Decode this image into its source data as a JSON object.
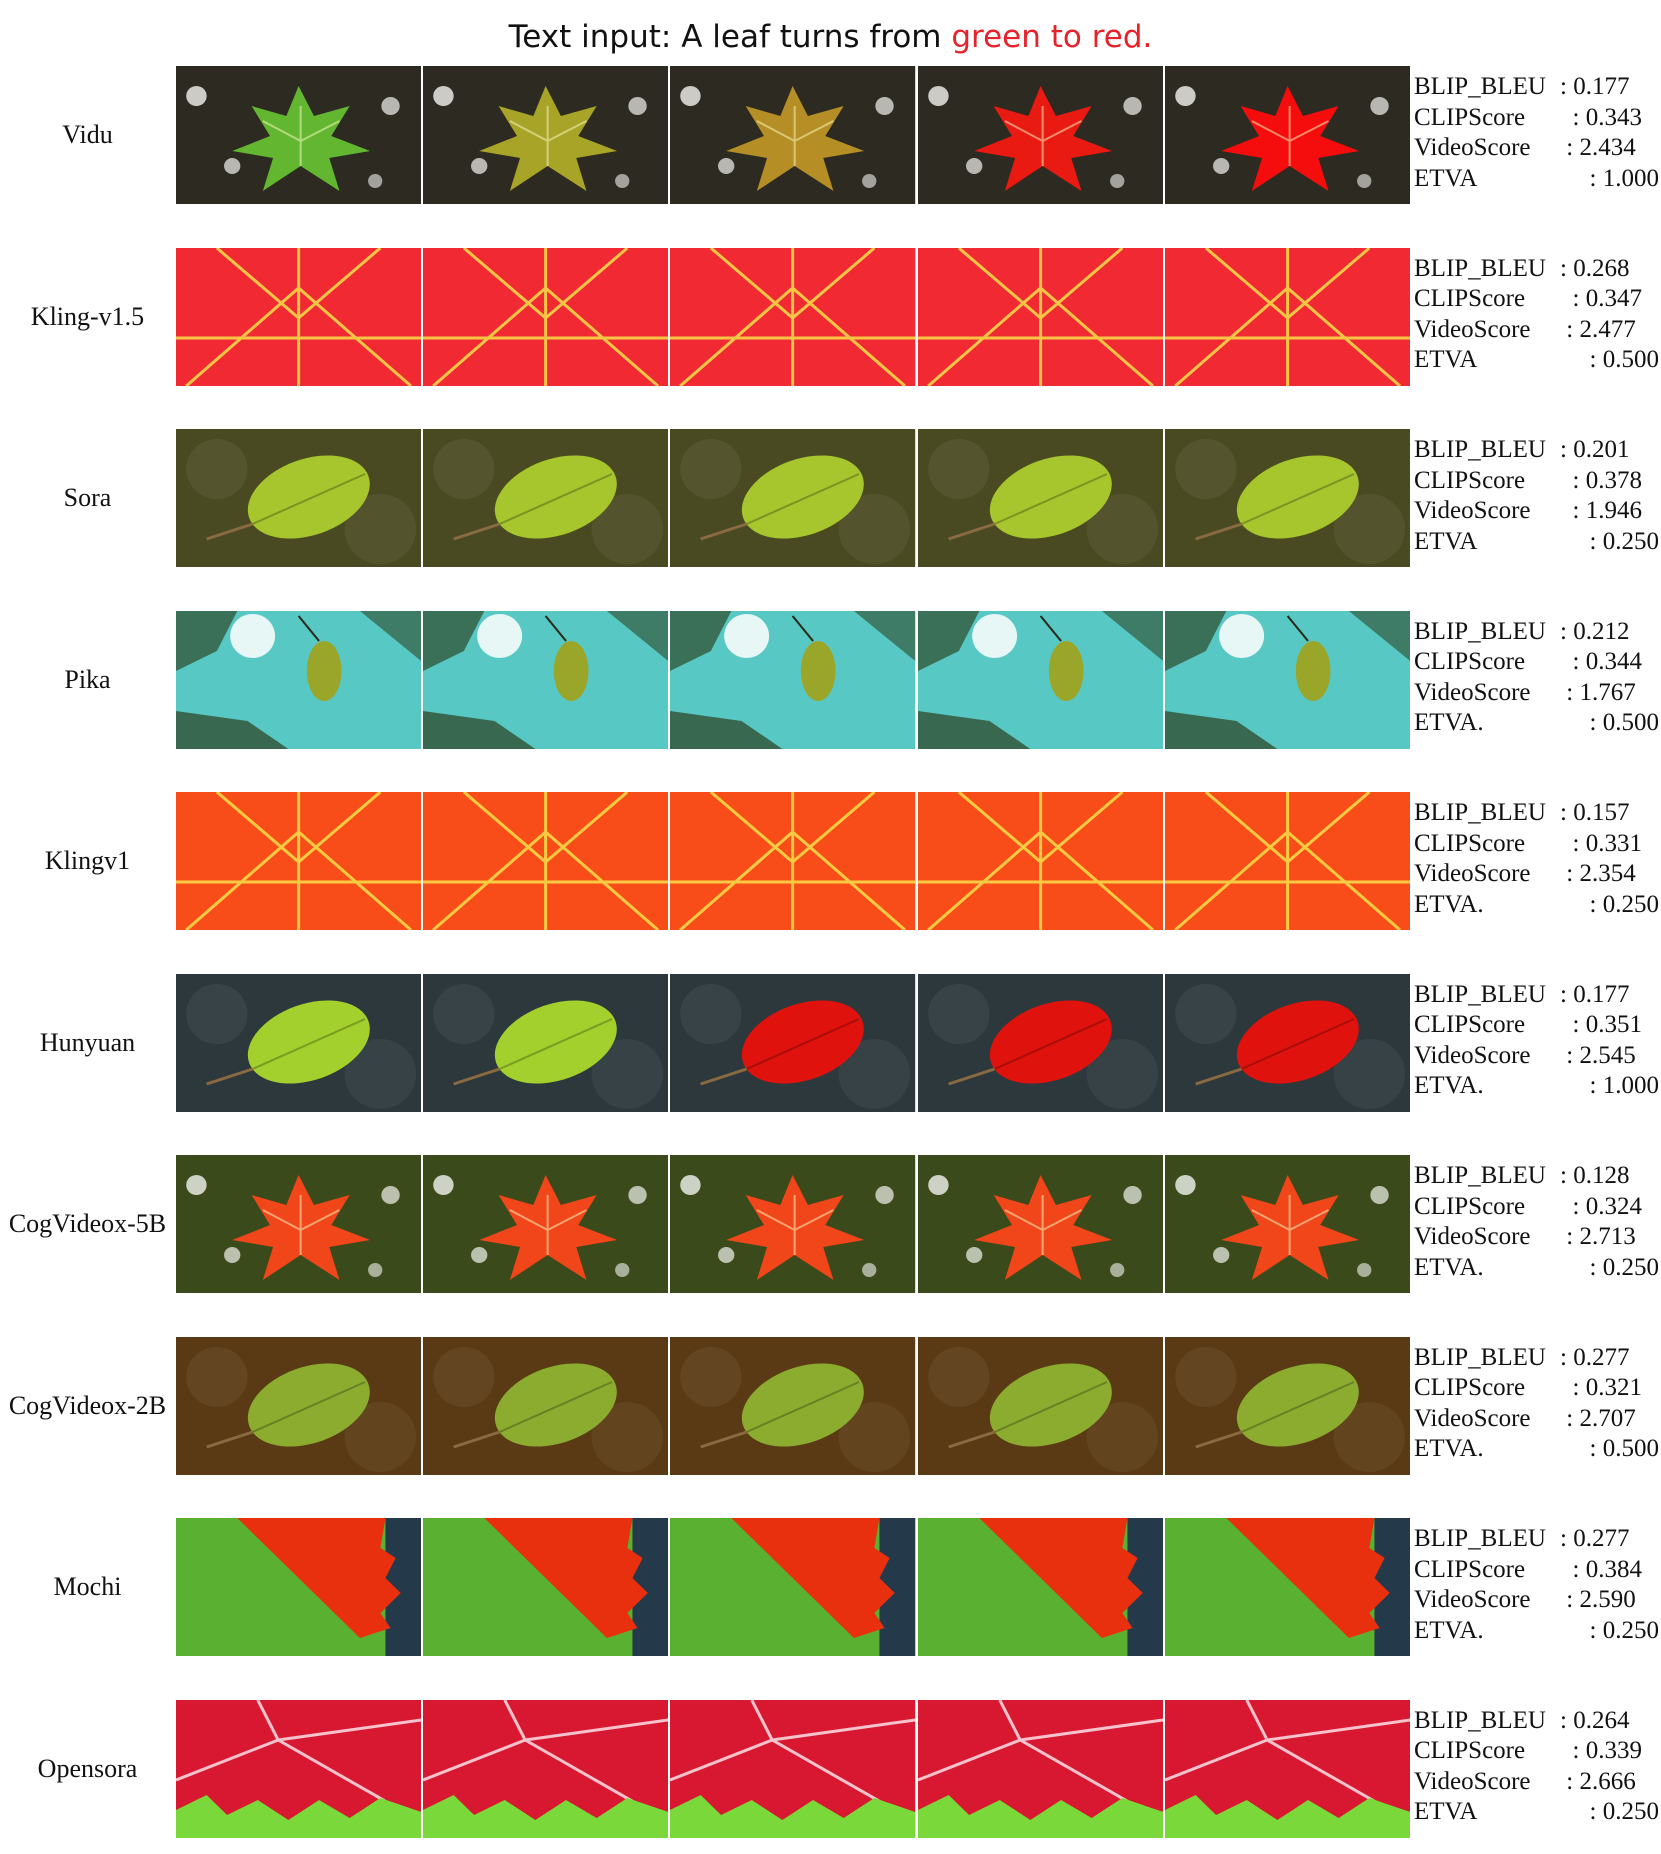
{
  "title": {
    "prefix": "Text input: A leaf turns from ",
    "highlight": "green to red.",
    "highlight_color": "#e8222a"
  },
  "rows": [
    {
      "model": "Vidu",
      "frames": [
        {
          "bg": "#2d2a22",
          "leaf": "#62b630",
          "shape": "maple"
        },
        {
          "bg": "#2d2a22",
          "leaf": "#a8a428",
          "shape": "maple"
        },
        {
          "bg": "#2d2a22",
          "leaf": "#b58f25",
          "shape": "maple"
        },
        {
          "bg": "#2d2a22",
          "leaf": "#e81a12",
          "shape": "maple"
        },
        {
          "bg": "#2d2a22",
          "leaf": "#f50d0d",
          "shape": "maple"
        }
      ],
      "metrics": [
        {
          "name": "BLIP_BLEU",
          "sep": ": ",
          "value": "0.177"
        },
        {
          "name": "CLIPScore",
          "sep": "  : ",
          "value": "0.343"
        },
        {
          "name": "VideoScore",
          "sep": " : ",
          "value": "2.434"
        },
        {
          "name": "ETVA",
          "sep": "        : ",
          "value": "1.000"
        }
      ]
    },
    {
      "model": "Kling-v1.5",
      "frames": [
        {
          "bg": "#e8202a",
          "leaf": "#f5303a",
          "shape": "closeup"
        },
        {
          "bg": "#e8202a",
          "leaf": "#f5303a",
          "shape": "closeup"
        },
        {
          "bg": "#e8202a",
          "leaf": "#f5303a",
          "shape": "closeup"
        },
        {
          "bg": "#e8202a",
          "leaf": "#f5303a",
          "shape": "closeup"
        },
        {
          "bg": "#e8202a",
          "leaf": "#f5303a",
          "shape": "closeup"
        }
      ],
      "metrics": [
        {
          "name": "BLIP_BLEU",
          "sep": ": ",
          "value": "0.268"
        },
        {
          "name": "CLIPScore",
          "sep": "  : ",
          "value": "0.347"
        },
        {
          "name": "VideoScore",
          "sep": " : ",
          "value": "2.477"
        },
        {
          "name": "ETVA",
          "sep": "        : ",
          "value": "0.500"
        }
      ]
    },
    {
      "model": "Sora",
      "frames": [
        {
          "bg": "#4a4a22",
          "leaf": "#a7c52c",
          "shape": "oval"
        },
        {
          "bg": "#4a4a22",
          "leaf": "#a7c52c",
          "shape": "oval"
        },
        {
          "bg": "#4a4a22",
          "leaf": "#a7c52c",
          "shape": "oval"
        },
        {
          "bg": "#4a4a22",
          "leaf": "#a7c52c",
          "shape": "oval"
        },
        {
          "bg": "#4a4a22",
          "leaf": "#a7c52c",
          "shape": "oval"
        }
      ],
      "metrics": [
        {
          "name": "BLIP_BLEU",
          "sep": ": ",
          "value": "0.201"
        },
        {
          "name": "CLIPScore",
          "sep": "  : ",
          "value": "0.378"
        },
        {
          "name": "VideoScore",
          "sep": "  : ",
          "value": "1.946"
        },
        {
          "name": "ETVA",
          "sep": "        : ",
          "value": "0.250"
        }
      ]
    },
    {
      "model": "Pika",
      "frames": [
        {
          "bg": "#58c8c4",
          "leaf": "#9aa62a",
          "shape": "small"
        },
        {
          "bg": "#58c8c4",
          "leaf": "#9aa62a",
          "shape": "small"
        },
        {
          "bg": "#58c8c4",
          "leaf": "#9aa62a",
          "shape": "small"
        },
        {
          "bg": "#58c8c4",
          "leaf": "#9aa62a",
          "shape": "small"
        },
        {
          "bg": "#58c8c4",
          "leaf": "#9aa62a",
          "shape": "small"
        }
      ],
      "metrics": [
        {
          "name": "BLIP_BLEU",
          "sep": ": ",
          "value": "0.212"
        },
        {
          "name": "CLIPScore",
          "sep": "  : ",
          "value": "0.344"
        },
        {
          "name": "VideoScore",
          "sep": " : ",
          "value": "1.767"
        },
        {
          "name": "ETVA.",
          "sep": "       : ",
          "value": "0.500"
        }
      ]
    },
    {
      "model": "Klingv1",
      "frames": [
        {
          "bg": "#f03a12",
          "leaf": "#ff5a1e",
          "shape": "closeup"
        },
        {
          "bg": "#f03a12",
          "leaf": "#ff5a1e",
          "shape": "closeup"
        },
        {
          "bg": "#f03a12",
          "leaf": "#ff5a1e",
          "shape": "closeup"
        },
        {
          "bg": "#f03a12",
          "leaf": "#ff5a1e",
          "shape": "closeup"
        },
        {
          "bg": "#f03a12",
          "leaf": "#ff5a1e",
          "shape": "closeup"
        }
      ],
      "metrics": [
        {
          "name": "BLIP_BLEU",
          "sep": ": ",
          "value": "0.157"
        },
        {
          "name": "CLIPScore",
          "sep": "  : ",
          "value": "0.331"
        },
        {
          "name": "VideoScore",
          "sep": " : ",
          "value": "2.354"
        },
        {
          "name": "ETVA.",
          "sep": "       : ",
          "value": "0.250"
        }
      ]
    },
    {
      "model": "Hunyuan",
      "frames": [
        {
          "bg": "#2c383c",
          "leaf": "#a3d02c",
          "shape": "oval"
        },
        {
          "bg": "#2c383c",
          "leaf": "#a3d02c",
          "shape": "oval"
        },
        {
          "bg": "#2c383c",
          "leaf": "#e0120e",
          "shape": "oval"
        },
        {
          "bg": "#2c383c",
          "leaf": "#e0120e",
          "shape": "oval"
        },
        {
          "bg": "#2c383c",
          "leaf": "#e0120e",
          "shape": "oval"
        }
      ],
      "metrics": [
        {
          "name": "BLIP_BLEU",
          "sep": ": ",
          "value": "0.177"
        },
        {
          "name": "CLIPScore",
          "sep": "  : ",
          "value": "0.351"
        },
        {
          "name": "VideoScore",
          "sep": " : ",
          "value": "2.545"
        },
        {
          "name": "ETVA.",
          "sep": "     : ",
          "value": "1.000"
        }
      ]
    },
    {
      "model": "CogVideox-5B",
      "frames": [
        {
          "bg": "#3a4a1a",
          "leaf": "#f0461a",
          "shape": "maple"
        },
        {
          "bg": "#3a4a1a",
          "leaf": "#f0461a",
          "shape": "maple"
        },
        {
          "bg": "#3a4a1a",
          "leaf": "#f0461a",
          "shape": "maple"
        },
        {
          "bg": "#3a4a1a",
          "leaf": "#f0461a",
          "shape": "maple"
        },
        {
          "bg": "#3a4a1a",
          "leaf": "#f0461a",
          "shape": "maple"
        }
      ],
      "metrics": [
        {
          "name": "BLIP_BLEU",
          "sep": ": ",
          "value": "0.128"
        },
        {
          "name": "CLIPScore",
          "sep": "  : ",
          "value": "0.324"
        },
        {
          "name": "VideoScore",
          "sep": " : ",
          "value": "2.713"
        },
        {
          "name": "ETVA.",
          "sep": "       : ",
          "value": "0.250"
        }
      ]
    },
    {
      "model": "CogVideox-2B",
      "frames": [
        {
          "bg": "#5a3a14",
          "leaf": "#8cac30",
          "shape": "oval"
        },
        {
          "bg": "#5a3a14",
          "leaf": "#8cac30",
          "shape": "oval"
        },
        {
          "bg": "#5a3a14",
          "leaf": "#8cac30",
          "shape": "oval"
        },
        {
          "bg": "#5a3a14",
          "leaf": "#8cac30",
          "shape": "oval"
        },
        {
          "bg": "#5a3a14",
          "leaf": "#8cac30",
          "shape": "oval"
        }
      ],
      "metrics": [
        {
          "name": "BLIP_BLEU",
          "sep": ": ",
          "value": "0.277"
        },
        {
          "name": "CLIPScore",
          "sep": "  : ",
          "value": "0.321"
        },
        {
          "name": "VideoScore",
          "sep": " : ",
          "value": "2.707"
        },
        {
          "name": "ETVA.",
          "sep": "       : ",
          "value": "0.500"
        }
      ]
    },
    {
      "model": "Mochi",
      "frames": [
        {
          "bg": "#5ab030",
          "leaf": "#e8300e",
          "shape": "split"
        },
        {
          "bg": "#5ab030",
          "leaf": "#e8300e",
          "shape": "split"
        },
        {
          "bg": "#5ab030",
          "leaf": "#e8300e",
          "shape": "split"
        },
        {
          "bg": "#5ab030",
          "leaf": "#e8300e",
          "shape": "split"
        },
        {
          "bg": "#5ab030",
          "leaf": "#e8300e",
          "shape": "split"
        }
      ],
      "metrics": [
        {
          "name": "BLIP_BLEU",
          "sep": ": ",
          "value": "0.277"
        },
        {
          "name": "CLIPScore",
          "sep": "  : ",
          "value": "0.384"
        },
        {
          "name": "VideoScore",
          "sep": " : ",
          "value": "2.590"
        },
        {
          "name": "ETVA.",
          "sep": "       : ",
          "value": "0.250"
        }
      ]
    },
    {
      "model": "Opensora",
      "frames": [
        {
          "bg": "#d81830",
          "leaf": "#e83052",
          "shape": "opensora"
        },
        {
          "bg": "#d81830",
          "leaf": "#e83052",
          "shape": "opensora"
        },
        {
          "bg": "#d81830",
          "leaf": "#e83052",
          "shape": "opensora"
        },
        {
          "bg": "#d81830",
          "leaf": "#e83052",
          "shape": "opensora"
        },
        {
          "bg": "#d81830",
          "leaf": "#e83052",
          "shape": "opensora"
        }
      ],
      "metrics": [
        {
          "name": "BLIP_BLEU",
          "sep": ": ",
          "value": "0.264"
        },
        {
          "name": "CLIPScore",
          "sep": "  : ",
          "value": "0.339"
        },
        {
          "name": "VideoScore",
          "sep": " : ",
          "value": "2.666"
        },
        {
          "name": "ETVA",
          "sep": "        : ",
          "value": "0.250"
        }
      ]
    }
  ]
}
